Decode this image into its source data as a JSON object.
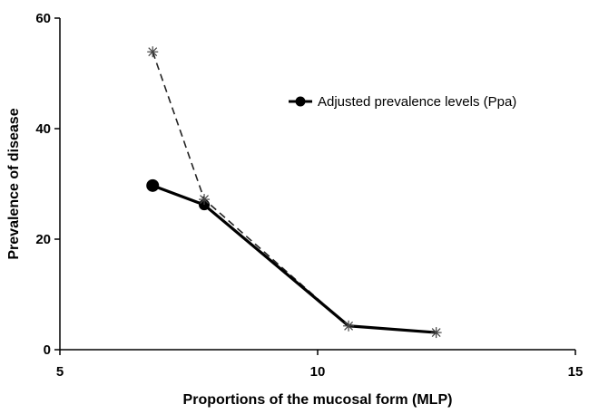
{
  "chart_data": {
    "type": "line",
    "xlabel": "Proportions of the mucosal form (MLP)",
    "ylabel": "Prevalence of disease",
    "xlim": [
      5,
      15
    ],
    "ylim": [
      0,
      60
    ],
    "xticks": [
      5,
      10,
      15
    ],
    "yticks": [
      0,
      20,
      40,
      60
    ],
    "grid": false,
    "legend_position": "top-right",
    "series": [
      {
        "name": "Adjusted prevalence levels (Ppa)",
        "style": "solid",
        "marker": "filled-circle",
        "color": "#000000",
        "points": [
          {
            "x": 6.8,
            "y": 29.7
          },
          {
            "x": 7.8,
            "y": 26.2
          },
          {
            "x": 10.6,
            "y": 4.3
          },
          {
            "x": 12.3,
            "y": 3.1
          }
        ]
      },
      {
        "style": "dashed",
        "marker": "asterisk",
        "color": "#000000",
        "points": [
          {
            "x": 6.8,
            "y": 53.9
          },
          {
            "x": 7.8,
            "y": 27.2
          },
          {
            "x": 10.6,
            "y": 4.3
          },
          {
            "x": 12.3,
            "y": 3.1
          }
        ]
      }
    ]
  }
}
